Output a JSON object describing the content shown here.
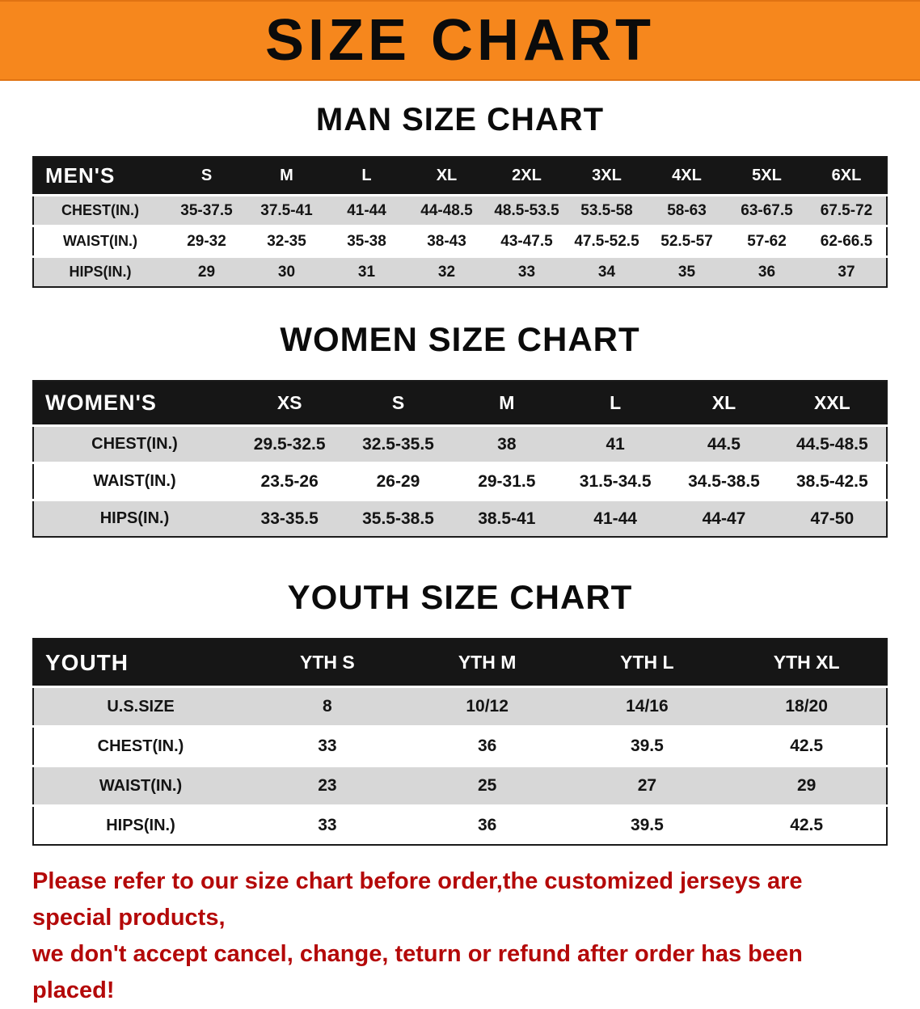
{
  "colors": {
    "banner_bg": "#f6871d",
    "header_bg": "#161616",
    "stripe_bg": "#d7d7d7",
    "disclaimer_red": "#b40909",
    "text_black": "#111111"
  },
  "banner": {
    "title": "SIZE CHART"
  },
  "men": {
    "heading": "MAN SIZE CHART",
    "table": {
      "header": [
        "MEN'S",
        "S",
        "M",
        "L",
        "XL",
        "2XL",
        "3XL",
        "4XL",
        "5XL",
        "6XL"
      ],
      "rows": [
        [
          "CHEST(IN.)",
          "35-37.5",
          "37.5-41",
          "41-44",
          "44-48.5",
          "48.5-53.5",
          "53.5-58",
          "58-63",
          "63-67.5",
          "67.5-72"
        ],
        [
          "WAIST(IN.)",
          "29-32",
          "32-35",
          "35-38",
          "38-43",
          "43-47.5",
          "47.5-52.5",
          "52.5-57",
          "57-62",
          "62-66.5"
        ],
        [
          "HIPS(IN.)",
          "29",
          "30",
          "31",
          "32",
          "33",
          "34",
          "35",
          "36",
          "37"
        ]
      ]
    }
  },
  "women": {
    "heading": "WOMEN SIZE CHART",
    "table": {
      "header": [
        "WOMEN'S",
        "XS",
        "S",
        "M",
        "L",
        "XL",
        "XXL"
      ],
      "rows": [
        [
          "CHEST(IN.)",
          "29.5-32.5",
          "32.5-35.5",
          "38",
          "41",
          "44.5",
          "44.5-48.5"
        ],
        [
          "WAIST(IN.)",
          "23.5-26",
          "26-29",
          "29-31.5",
          "31.5-34.5",
          "34.5-38.5",
          "38.5-42.5"
        ],
        [
          "HIPS(IN.)",
          "33-35.5",
          "35.5-38.5",
          "38.5-41",
          "41-44",
          "44-47",
          "47-50"
        ]
      ]
    }
  },
  "youth": {
    "heading": "YOUTH SIZE CHART",
    "table": {
      "header": [
        "YOUTH",
        "YTH S",
        "YTH M",
        "YTH L",
        "YTH XL"
      ],
      "rows": [
        [
          "U.S.SIZE",
          "8",
          "10/12",
          "14/16",
          "18/20"
        ],
        [
          "CHEST(IN.)",
          "33",
          "36",
          "39.5",
          "42.5"
        ],
        [
          "WAIST(IN.)",
          "23",
          "25",
          "27",
          "29"
        ],
        [
          "HIPS(IN.)",
          "33",
          "36",
          "39.5",
          "42.5"
        ]
      ]
    }
  },
  "disclaimer": {
    "line1": "Please refer to our size chart before order,the customized jerseys are special products,",
    "line2": "we don't accept cancel, change, teturn or refund after order has been placed!"
  }
}
